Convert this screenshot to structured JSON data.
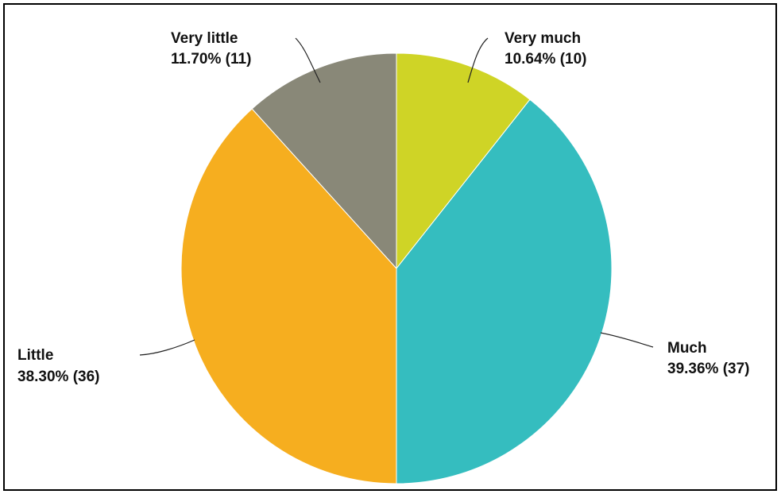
{
  "chart_data": {
    "type": "pie",
    "title": "",
    "slices": [
      {
        "label": "Very much",
        "percent_label": "10.64% (10)",
        "value": 10,
        "percent": 10.64,
        "color": "#cfd426"
      },
      {
        "label": "Much",
        "percent_label": "39.36% (37)",
        "value": 37,
        "percent": 39.36,
        "color": "#35bdbf"
      },
      {
        "label": "Little",
        "percent_label": "38.30% (36)",
        "value": 36,
        "percent": 38.3,
        "color": "#f6ae1f"
      },
      {
        "label": "Very little",
        "percent_label": "11.70% (11)",
        "value": 11,
        "percent": 11.7,
        "color": "#898878"
      }
    ],
    "start_angle": "12 o'clock",
    "direction": "clockwise",
    "legend": "none"
  }
}
